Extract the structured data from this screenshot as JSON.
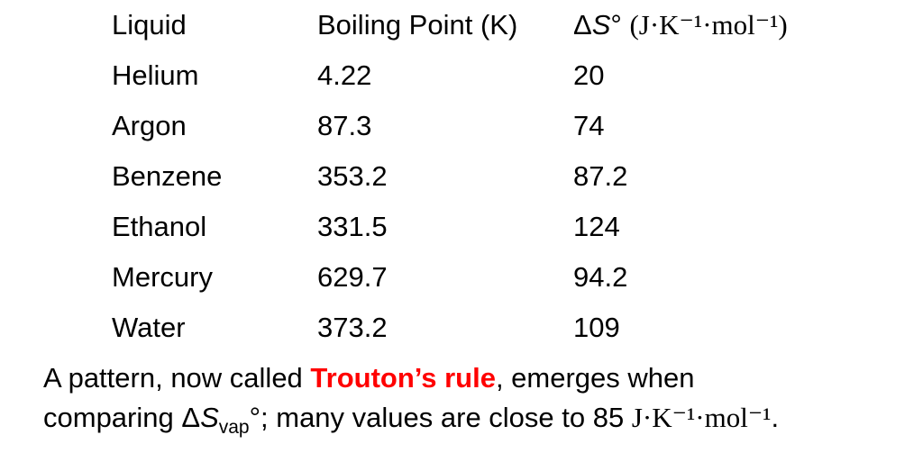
{
  "table": {
    "headers": {
      "liquid": "Liquid",
      "boiling_point": "Boiling Point (K)",
      "entropy_delta": "Δ",
      "entropy_symbol": "S",
      "entropy_degree": "°",
      "entropy_units": "(J·K⁻¹·mol⁻¹)"
    },
    "rows": [
      {
        "liquid": "Helium",
        "boiling_point": "4.22",
        "entropy": "20"
      },
      {
        "liquid": "Argon",
        "boiling_point": "87.3",
        "entropy": "74"
      },
      {
        "liquid": "Benzene",
        "boiling_point": "353.2",
        "entropy": "87.2"
      },
      {
        "liquid": "Ethanol",
        "boiling_point": "331.5",
        "entropy": "124"
      },
      {
        "liquid": "Mercury",
        "boiling_point": "629.7",
        "entropy": "94.2"
      },
      {
        "liquid": "Water",
        "boiling_point": "373.2",
        "entropy": "109"
      }
    ]
  },
  "note": {
    "line1_before": "A pattern, now called ",
    "highlight": "Trouton’s rule",
    "line1_after": ", emerges when",
    "line2_before": "comparing Δ",
    "line2_symbol": "S",
    "line2_subscript": "vap",
    "line2_degree": "°",
    "line2_middle": "; many values are close to 85 ",
    "line2_units": "J·K⁻¹·mol⁻¹",
    "line2_end": "."
  },
  "colors": {
    "text": "#000000",
    "highlight": "#ff0000",
    "background": "#ffffff"
  }
}
